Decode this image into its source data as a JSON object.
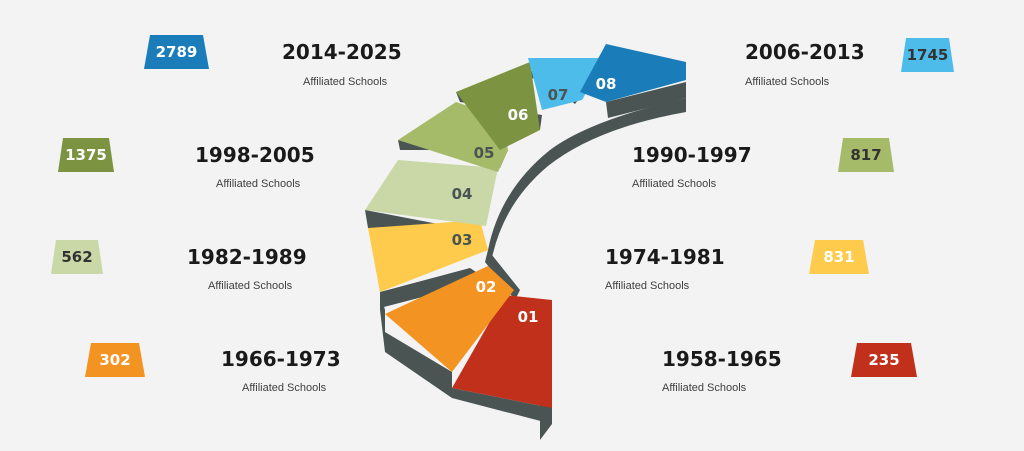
{
  "colors": {
    "red": "#c1301b",
    "orange": "#f39322",
    "yellow": "#fecb4c",
    "pale_green": "#c9d8a6",
    "light_green": "#a5bb69",
    "olive": "#7c9442",
    "sky_blue": "#4ebceb",
    "blue": "#1a7dba",
    "side": "#4a5553",
    "background": "#f3f3f3"
  },
  "steps": [
    {
      "number": "01",
      "period": "1958-1965",
      "label": "Affiliated Schools",
      "value": "235",
      "color_key": "red"
    },
    {
      "number": "02",
      "period": "1966-1973",
      "label": "Affiliated Schools",
      "value": "302",
      "color_key": "orange"
    },
    {
      "number": "03",
      "period": "1974-1981",
      "label": "Affiliated Schools",
      "value": "831",
      "color_key": "yellow"
    },
    {
      "number": "04",
      "period": "1982-1989",
      "label": "Affiliated Schools",
      "value": "562",
      "color_key": "pale_green"
    },
    {
      "number": "05",
      "period": "1990-1997",
      "label": "Affiliated Schools",
      "value": "817",
      "color_key": "light_green"
    },
    {
      "number": "06",
      "period": "1998-2005",
      "label": "Affiliated Schools",
      "value": "1375",
      "color_key": "olive"
    },
    {
      "number": "07",
      "period": "2006-2013",
      "label": "Affiliated Schools",
      "value": "1745",
      "color_key": "sky_blue"
    },
    {
      "number": "08",
      "period": "2014-2025",
      "label": "Affiliated Schools",
      "value": "2789",
      "color_key": "blue"
    }
  ]
}
